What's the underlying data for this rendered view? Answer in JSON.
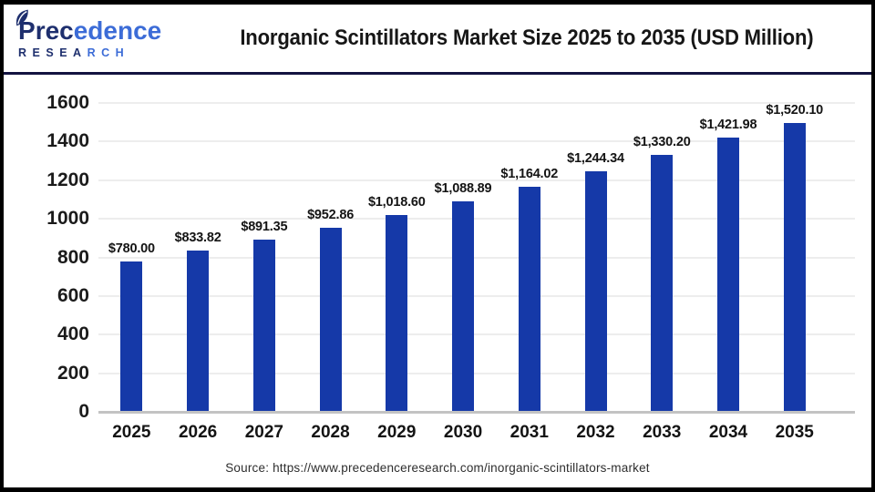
{
  "header": {
    "title": "Inorganic Scintillators Market Size 2025 to 2035 (USD Million)",
    "logo": {
      "brand_initial": "P",
      "brand_rest_primary": "rec",
      "brand_rest_secondary": "edence",
      "subtitle_primary": "RESEA",
      "subtitle_secondary": "RCH",
      "navy": "#1E2F6E",
      "blue": "#3C6CD7"
    }
  },
  "chart_data": {
    "type": "bar",
    "title": "Inorganic Scintillators Market Size 2025 to 2035 (USD Million)",
    "categories": [
      "2025",
      "2026",
      "2027",
      "2028",
      "2029",
      "2030",
      "2031",
      "2032",
      "2033",
      "2034",
      "2035"
    ],
    "values": [
      780.0,
      833.82,
      891.35,
      952.86,
      1018.6,
      1088.89,
      1164.02,
      1244.34,
      1330.2,
      1421.98,
      1520.1
    ],
    "value_labels": [
      "$780.00",
      "$833.82",
      "$891.35",
      "$952.86",
      "$1,018.60",
      "$1,088.89",
      "$1,164.02",
      "$1,244.34",
      "$1,330.20",
      "$1,421.98",
      "$1,520.10"
    ],
    "xlabel": "",
    "ylabel": "",
    "ylim": [
      0,
      1600
    ],
    "ytick_step": 200,
    "grid": true,
    "legend_position": "none",
    "bar_color": "#1539A8"
  },
  "footer": {
    "source": "Source: https://www.precedenceresearch.com/inorganic-scintillators-market"
  }
}
